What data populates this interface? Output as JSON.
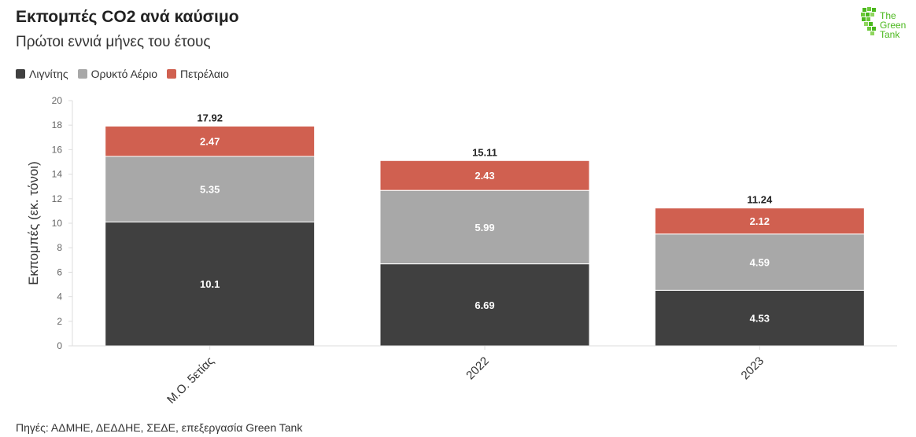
{
  "header": {
    "title": "Εκπομπές CO2 ανά καύσιμο",
    "subtitle": "Πρώτοι εννιά μήνες του έτους"
  },
  "logo": {
    "line1": "The",
    "line2": "Green",
    "line3": "Tank",
    "color": "#4ab81d"
  },
  "source": "Πηγές: ΑΔΜΗΕ, ΔΕΔΔΗΕ, ΣΕΔΕ, επεξεργασία Green Tank",
  "chart_data": {
    "type": "bar",
    "stacked": true,
    "title": "Εκπομπές CO2 ανά καύσιμο",
    "subtitle": "Πρώτοι εννιά μήνες του έτους",
    "ylabel": "Εκπομπές (εκ. τόνοι)",
    "xlabel": "",
    "ylim": [
      0,
      20
    ],
    "yticks": [
      "0",
      "2",
      "4",
      "6",
      "8",
      "10",
      "12",
      "14",
      "16",
      "18",
      "20"
    ],
    "grid": false,
    "legend_position": "top-left",
    "categories": [
      "Μ.Ο. 5ετίας",
      "2022",
      "2023"
    ],
    "series": [
      {
        "name": "Λιγνίτης",
        "color": "#404040",
        "values": [
          10.1,
          6.69,
          4.53
        ],
        "labels": [
          "10.1",
          "6.69",
          "4.53"
        ]
      },
      {
        "name": "Ορυκτό Αέριο",
        "color": "#a8a8a8",
        "values": [
          5.35,
          5.99,
          4.59
        ],
        "labels": [
          "5.35",
          "5.99",
          "4.59"
        ]
      },
      {
        "name": "Πετρέλαιο",
        "color": "#d06050",
        "values": [
          2.47,
          2.43,
          2.12
        ],
        "labels": [
          "2.47",
          "2.43",
          "2.12"
        ]
      }
    ],
    "totals": [
      "17.92",
      "15.11",
      "11.24"
    ]
  }
}
